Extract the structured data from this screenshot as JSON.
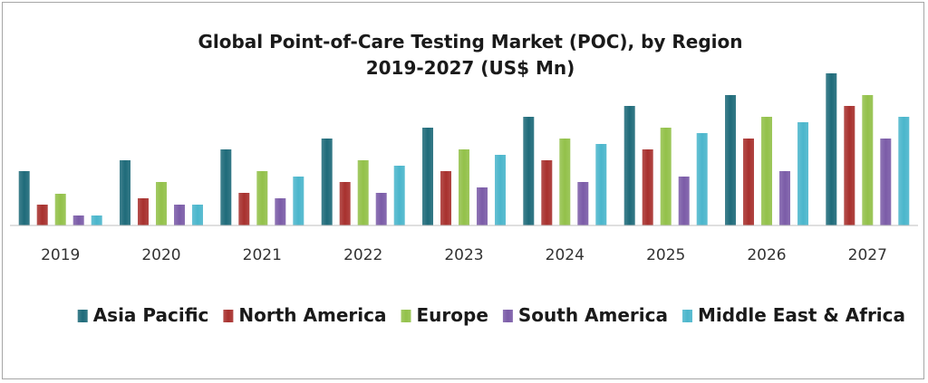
{
  "chart_data": {
    "type": "bar",
    "title": "Global Point-of-Care Testing Market (POC), by Region",
    "subtitle": "2019-2027 (US$ Mn)",
    "xlabel": "",
    "ylabel": "",
    "categories": [
      "2019",
      "2020",
      "2021",
      "2022",
      "2023",
      "2024",
      "2025",
      "2026",
      "2027"
    ],
    "ylim": [
      0,
      170
    ],
    "grid": false,
    "legend_position": "bottom",
    "series": [
      {
        "name": "Asia Pacific",
        "color": "#1f6b7a",
        "values": [
          60,
          72,
          84,
          96,
          108,
          120,
          132,
          144,
          168
        ]
      },
      {
        "name": "North America",
        "color": "#a8312e",
        "values": [
          23,
          30,
          36,
          48,
          60,
          72,
          84,
          96,
          132
        ]
      },
      {
        "name": "Europe",
        "color": "#93c14a",
        "values": [
          35,
          48,
          60,
          72,
          84,
          96,
          108,
          120,
          144
        ]
      },
      {
        "name": "South America",
        "color": "#7b5ca8",
        "values": [
          11,
          23,
          30,
          36,
          42,
          48,
          54,
          60,
          96
        ]
      },
      {
        "name": "Middle East & Africa",
        "color": "#4bb6cc",
        "values": [
          11,
          23,
          54,
          66,
          78,
          90,
          102,
          114,
          120
        ]
      }
    ]
  }
}
